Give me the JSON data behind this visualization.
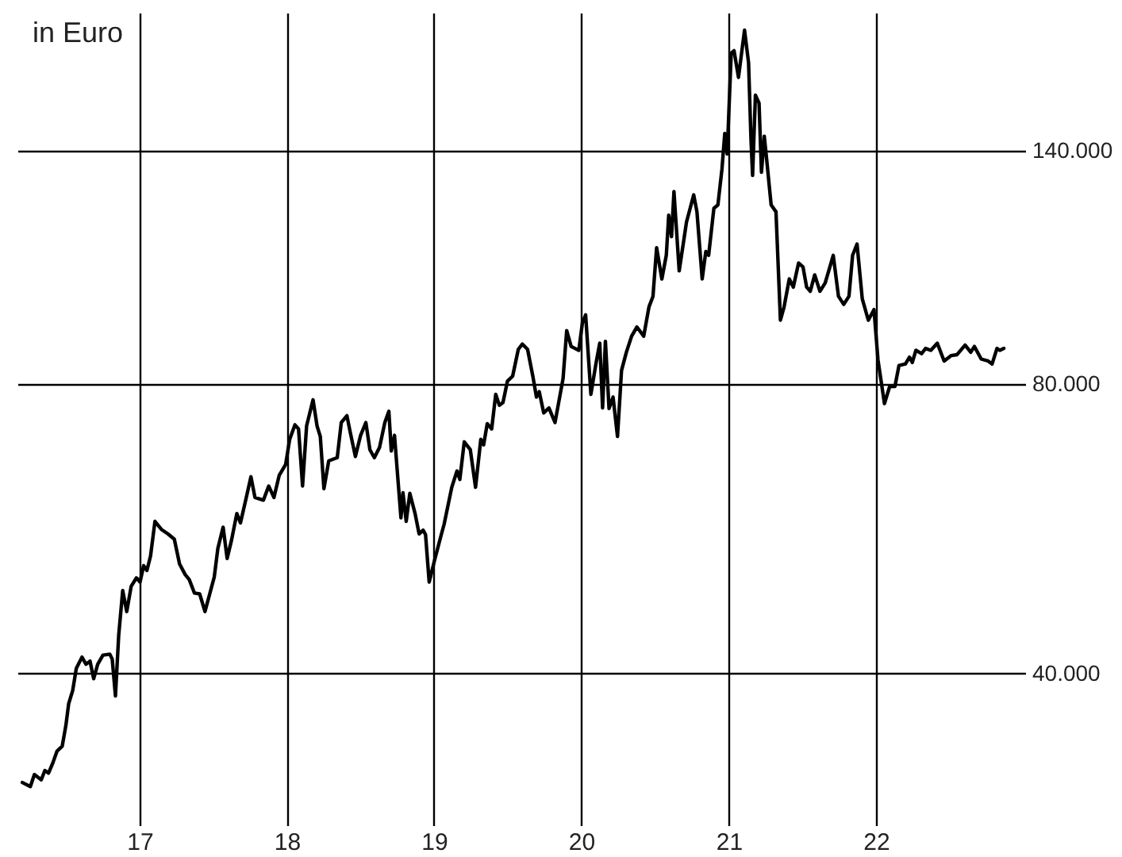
{
  "chart_data": {
    "type": "line",
    "ylabel": "in Euro",
    "log": true,
    "grid": true,
    "xlim": [
      "2016-03-04",
      "2023-01-06"
    ],
    "xticks": [
      {
        "value": "2017",
        "label": "17"
      },
      {
        "value": "2018",
        "label": "18"
      },
      {
        "value": "2019",
        "label": "19"
      },
      {
        "value": "2020",
        "label": "20"
      },
      {
        "value": "2021",
        "label": "21"
      },
      {
        "value": "2022",
        "label": "22"
      }
    ],
    "ylim": [
      27800,
      195000
    ],
    "yticks": [
      {
        "value": 40000,
        "label": "40.000"
      },
      {
        "value": 80000,
        "label": "80.000"
      },
      {
        "value": 140000,
        "label": "140.000"
      }
    ],
    "x": [
      "2016-03-16",
      "2016-04-05",
      "2016-04-15",
      "2016-05-02",
      "2016-05-11",
      "2016-05-20",
      "2016-05-31",
      "2016-06-10",
      "2016-06-23",
      "2016-07-02",
      "2016-07-09",
      "2016-07-19",
      "2016-07-28",
      "2016-08-11",
      "2016-08-21",
      "2016-08-31",
      "2016-09-09",
      "2016-09-19",
      "2016-10-02",
      "2016-10-19",
      "2016-10-25",
      "2016-11-02",
      "2016-11-10",
      "2016-11-20",
      "2016-11-30",
      "2016-12-11",
      "2016-12-24",
      "2017-01-02",
      "2017-01-11",
      "2017-01-19",
      "2017-01-28",
      "2017-02-08",
      "2017-02-24",
      "2017-03-12",
      "2017-03-28",
      "2017-04-10",
      "2017-04-24",
      "2017-05-04",
      "2017-05-17",
      "2017-05-30",
      "2017-06-12",
      "2017-07-05",
      "2017-07-14",
      "2017-07-27",
      "2017-08-06",
      "2017-08-17",
      "2017-08-30",
      "2017-09-08",
      "2017-09-21",
      "2017-10-04",
      "2017-10-14",
      "2017-11-04",
      "2017-11-17",
      "2017-11-30",
      "2017-12-13",
      "2017-12-29",
      "2018-01-08",
      "2018-01-21",
      "2018-01-30",
      "2018-02-09",
      "2018-02-19",
      "2018-03-07",
      "2018-03-17",
      "2018-03-25",
      "2018-04-03",
      "2018-04-15",
      "2018-05-06",
      "2018-05-16",
      "2018-05-30",
      "2018-06-07",
      "2018-06-20",
      "2018-07-03",
      "2018-07-16",
      "2018-07-26",
      "2018-08-06",
      "2018-08-19",
      "2018-09-01",
      "2018-09-11",
      "2018-09-17",
      "2018-09-25",
      "2018-10-03",
      "2018-10-11",
      "2018-10-16",
      "2018-10-24",
      "2018-11-02",
      "2018-11-15",
      "2018-11-25",
      "2018-12-05",
      "2018-12-11",
      "2018-12-20",
      "2019-01-02",
      "2019-01-19",
      "2019-01-26",
      "2019-02-14",
      "2019-02-27",
      "2019-03-06",
      "2019-03-17",
      "2019-04-01",
      "2019-04-14",
      "2019-04-27",
      "2019-05-04",
      "2019-05-13",
      "2019-05-24",
      "2019-06-03",
      "2019-06-12",
      "2019-06-21",
      "2019-07-02",
      "2019-07-15",
      "2019-07-29",
      "2019-08-08",
      "2019-08-21",
      "2019-09-03",
      "2019-09-12",
      "2019-09-19",
      "2019-09-30",
      "2019-10-13",
      "2019-10-28",
      "2019-11-17",
      "2019-11-26",
      "2019-12-07",
      "2019-12-26",
      "2020-01-04",
      "2020-01-12",
      "2020-01-25",
      "2020-02-07",
      "2020-02-16",
      "2020-02-23",
      "2020-03-01",
      "2020-03-10",
      "2020-03-20",
      "2020-03-31",
      "2020-04-10",
      "2020-04-22",
      "2020-05-05",
      "2020-05-18",
      "2020-06-04",
      "2020-06-17",
      "2020-06-27",
      "2020-07-06",
      "2020-07-19",
      "2020-07-30",
      "2020-08-05",
      "2020-08-12",
      "2020-08-18",
      "2020-08-31",
      "2020-09-18",
      "2020-10-06",
      "2020-10-14",
      "2020-10-27",
      "2020-11-05",
      "2020-11-12",
      "2020-11-25",
      "2020-12-05",
      "2020-12-15",
      "2020-12-22",
      "2020-12-28",
      "2021-01-07",
      "2021-01-14",
      "2021-01-25",
      "2021-02-09",
      "2021-02-19",
      "2021-02-25",
      "2021-03-01",
      "2021-03-08",
      "2021-03-17",
      "2021-03-23",
      "2021-03-30",
      "2021-04-05",
      "2021-04-16",
      "2021-04-28",
      "2021-05-09",
      "2021-05-18",
      "2021-05-31",
      "2021-06-10",
      "2021-06-23",
      "2021-07-04",
      "2021-07-13",
      "2021-07-22",
      "2021-08-02",
      "2021-08-15",
      "2021-08-28",
      "2021-09-17",
      "2021-09-30",
      "2021-10-13",
      "2021-10-26",
      "2021-11-04",
      "2021-11-15",
      "2021-11-28",
      "2021-12-13",
      "2021-12-27",
      "2022-01-06",
      "2022-01-22",
      "2022-02-04",
      "2022-02-17",
      "2022-02-27",
      "2022-03-15",
      "2022-03-25",
      "2022-04-01",
      "2022-04-10",
      "2022-04-24",
      "2022-05-04",
      "2022-05-17",
      "2022-06-02",
      "2022-06-19",
      "2022-07-06",
      "2022-07-21",
      "2022-08-10",
      "2022-08-24",
      "2022-09-02",
      "2022-09-19",
      "2022-10-06",
      "2022-10-16",
      "2022-10-28",
      "2022-11-04",
      "2022-11-14"
    ],
    "series": [
      {
        "color": "#000000",
        "values": [
          30800,
          30500,
          31400,
          31000,
          31700,
          31500,
          32300,
          33200,
          33600,
          35300,
          37200,
          38400,
          40500,
          41600,
          40900,
          41200,
          39500,
          40900,
          41800,
          41900,
          41400,
          37900,
          43800,
          48800,
          46400,
          49300,
          50300,
          49800,
          51800,
          51200,
          53000,
          57600,
          56500,
          55900,
          55200,
          52000,
          50700,
          50100,
          48500,
          48400,
          46400,
          50400,
          54000,
          56800,
          52700,
          55100,
          58700,
          57400,
          60600,
          64100,
          61000,
          60600,
          62700,
          61000,
          64300,
          66000,
          70100,
          72600,
          71900,
          62700,
          72400,
          77100,
          72400,
          70600,
          62300,
          66600,
          67100,
          73000,
          74200,
          71400,
          67300,
          70800,
          73000,
          68400,
          67100,
          68800,
          73000,
          75000,
          68200,
          70800,
          64100,
          58100,
          61700,
          57600,
          61600,
          58700,
          55900,
          56400,
          55800,
          49800,
          52400,
          55800,
          57200,
          62500,
          65000,
          63700,
          69700,
          68400,
          62500,
          70100,
          69200,
          72800,
          71900,
          78100,
          76100,
          76600,
          80600,
          81600,
          87000,
          88100,
          87000,
          81600,
          77600,
          78600,
          74700,
          75600,
          73000,
          81100,
          91000,
          87600,
          86800,
          92700,
          94500,
          78100,
          84300,
          88300,
          75600,
          88700,
          75500,
          77600,
          70600,
          82700,
          86400,
          89800,
          91800,
          89800,
          96300,
          98800,
          111000,
          103000,
          109000,
          120000,
          114000,
          127000,
          105000,
          118000,
          126000,
          121000,
          103000,
          110000,
          109000,
          122000,
          123000,
          134000,
          146000,
          139000,
          177000,
          178000,
          167000,
          187000,
          173000,
          144000,
          132000,
          160000,
          157000,
          133000,
          145000,
          137000,
          123000,
          121000,
          93300,
          96300,
          103000,
          101000,
          107000,
          106000,
          101000,
          100000,
          104000,
          100000,
          102000,
          109000,
          98800,
          96900,
          98800,
          109000,
          112000,
          98200,
          93300,
          95700,
          84800,
          76400,
          79600,
          79600,
          83700,
          84000,
          85400,
          84300,
          86800,
          86100,
          87200,
          86800,
          88300,
          84600,
          85700,
          85900,
          87900,
          86400,
          87600,
          85000,
          84600,
          84000,
          87200,
          86800,
          87200
        ]
      }
    ]
  }
}
